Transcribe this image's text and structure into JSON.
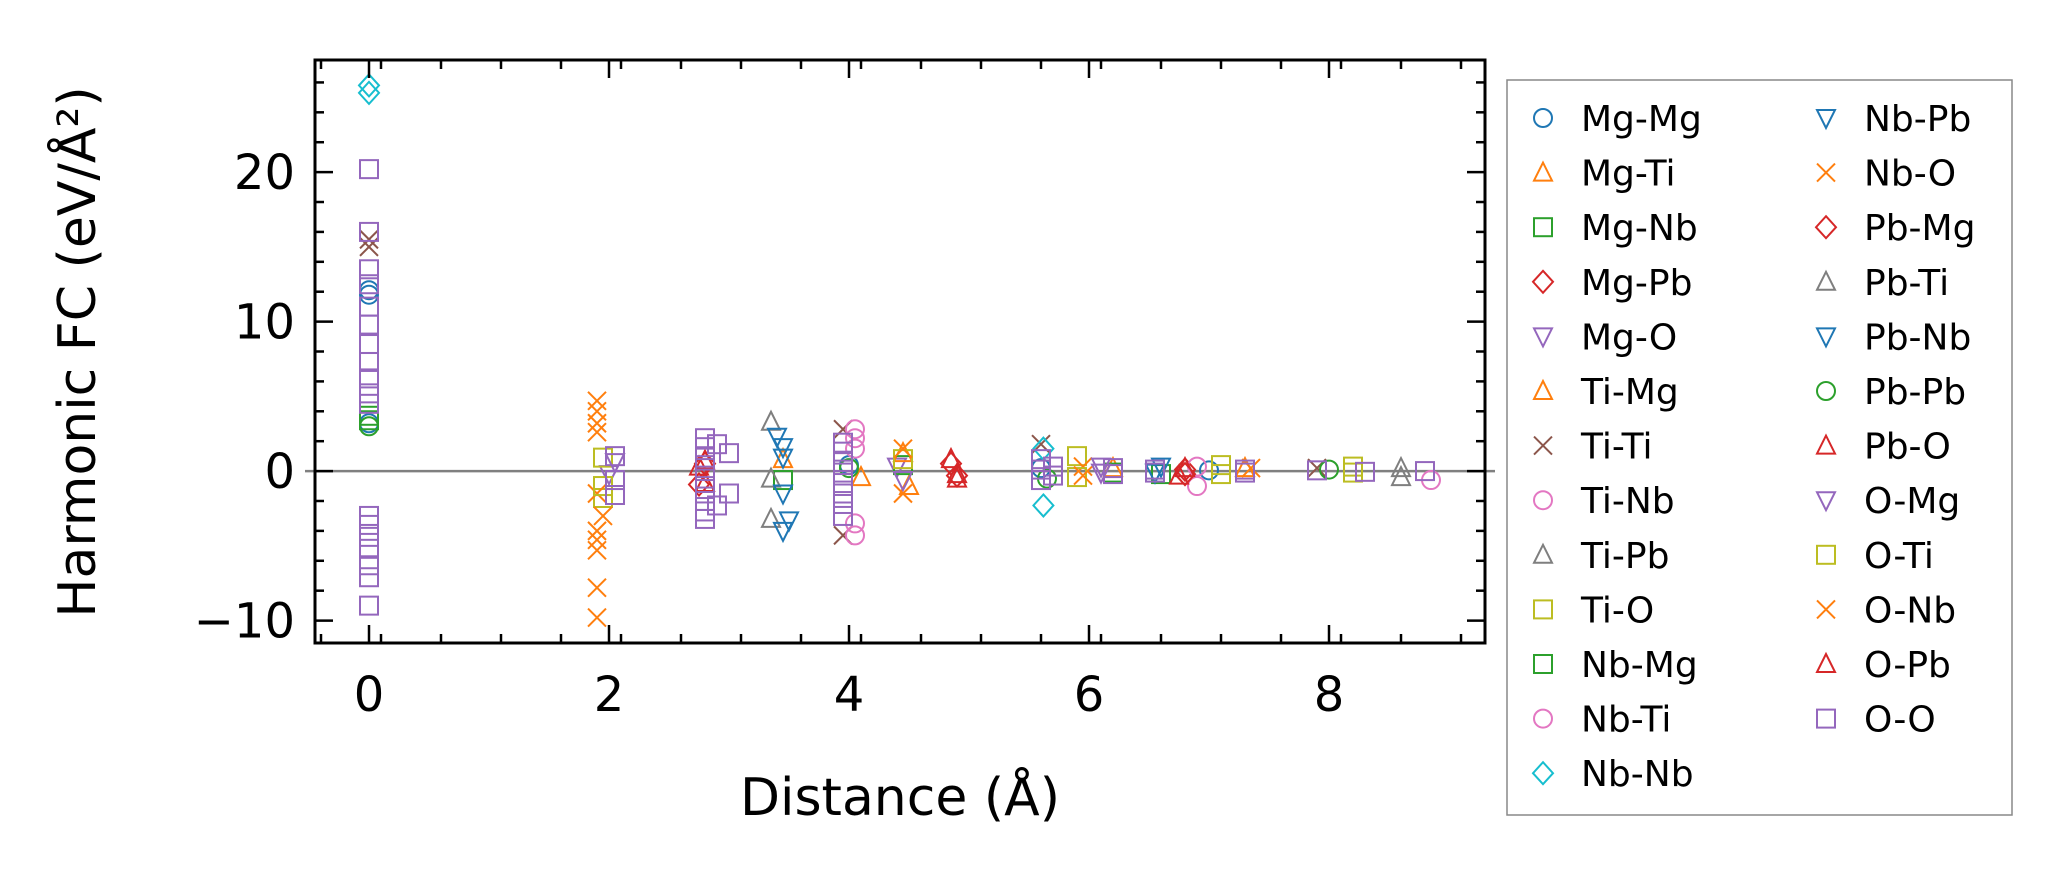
{
  "chart_data": {
    "type": "scatter",
    "xlabel": "Distance (Å)",
    "ylabel": "Harmonic FC (eV/Å²)",
    "xlim": [
      -0.45,
      9.3
    ],
    "ylim": [
      -11.5,
      27.5
    ],
    "xticks": [
      0,
      2,
      4,
      6,
      8
    ],
    "xtick_labels": [
      "0",
      "2",
      "4",
      "6",
      "8"
    ],
    "yticks": [
      -10,
      0,
      10,
      20
    ],
    "ytick_labels": [
      "−10",
      "0",
      "10",
      "20"
    ],
    "reference_line_y": 0,
    "legend_position": "outside right",
    "series": [
      {
        "name": "Mg-Mg",
        "color": "#1f77b4",
        "marker": "circle",
        "points": [
          [
            0,
            12.1
          ],
          [
            0,
            11.8
          ],
          [
            0,
            3.2
          ],
          [
            4.0,
            0.4
          ],
          [
            5.6,
            0.2
          ],
          [
            7.0,
            0.05
          ]
        ]
      },
      {
        "name": "Mg-Ti",
        "color": "#ff7f0e",
        "marker": "triangle-up",
        "points": [
          [
            3.45,
            0.8
          ],
          [
            4.1,
            -0.4
          ],
          [
            6.2,
            0.2
          ]
        ]
      },
      {
        "name": "Mg-Nb",
        "color": "#2ca02c",
        "marker": "square",
        "points": [
          [
            3.45,
            -0.6
          ],
          [
            6.2,
            -0.1
          ]
        ]
      },
      {
        "name": "Mg-Pb",
        "color": "#d62728",
        "marker": "diamond",
        "points": [
          [
            2.8,
            0.5
          ],
          [
            4.9,
            -0.3
          ],
          [
            6.8,
            0.1
          ]
        ]
      },
      {
        "name": "Mg-O",
        "color": "#9467bd",
        "marker": "triangle-down",
        "points": [
          [
            2.0,
            -0.2
          ],
          [
            4.4,
            0.3
          ],
          [
            6.1,
            -0.1
          ]
        ]
      },
      {
        "name": "Ti-Mg",
        "color": "#ff7f0e",
        "marker": "triangle-up",
        "points": [
          [
            4.45,
            1.2
          ],
          [
            4.5,
            -1.0
          ],
          [
            7.3,
            0.2
          ]
        ]
      },
      {
        "name": "Ti-Ti",
        "color": "#8c564b",
        "marker": "x",
        "points": [
          [
            0,
            15.5
          ],
          [
            0,
            15.0
          ],
          [
            3.95,
            2.8
          ],
          [
            3.95,
            -4.3
          ],
          [
            5.6,
            1.8
          ],
          [
            7.9,
            0.2
          ]
        ]
      },
      {
        "name": "Ti-Nb",
        "color": "#e377c2",
        "marker": "circle",
        "points": [
          [
            4.05,
            2.8
          ],
          [
            4.05,
            2.2
          ],
          [
            4.05,
            -3.5
          ],
          [
            4.05,
            -4.3
          ],
          [
            6.9,
            -1.0
          ],
          [
            8.85,
            -0.6
          ]
        ]
      },
      {
        "name": "Ti-Pb",
        "color": "#7f7f7f",
        "marker": "triangle-up",
        "points": [
          [
            3.35,
            3.3
          ],
          [
            3.35,
            -3.2
          ],
          [
            8.6,
            -0.4
          ]
        ]
      },
      {
        "name": "Ti-O",
        "color": "#bcbd22",
        "marker": "square",
        "points": [
          [
            1.95,
            0.9
          ],
          [
            1.95,
            -1.8
          ],
          [
            5.9,
            1.0
          ],
          [
            7.1,
            0.4
          ],
          [
            8.2,
            0.3
          ]
        ]
      },
      {
        "name": "Nb-Mg",
        "color": "#2ca02c",
        "marker": "square",
        "points": [
          [
            0,
            3.7
          ],
          [
            0,
            3.4
          ],
          [
            4.45,
            0.4
          ],
          [
            6.6,
            -0.2
          ]
        ]
      },
      {
        "name": "Nb-Ti",
        "color": "#e377c2",
        "marker": "circle",
        "points": [
          [
            4.05,
            1.5
          ],
          [
            6.9,
            0.3
          ]
        ]
      },
      {
        "name": "Nb-Nb",
        "color": "#17becf",
        "marker": "diamond",
        "points": [
          [
            0,
            25.8
          ],
          [
            0,
            25.3
          ],
          [
            5.62,
            1.5
          ],
          [
            5.62,
            -2.3
          ]
        ]
      },
      {
        "name": "Nb-Pb",
        "color": "#1f77b4",
        "marker": "triangle-down",
        "points": [
          [
            3.4,
            2.3
          ],
          [
            3.45,
            1.6
          ],
          [
            3.5,
            -3.3
          ],
          [
            3.45,
            -4.0
          ],
          [
            6.6,
            0.3
          ]
        ]
      },
      {
        "name": "Nb-O",
        "color": "#ff7f0e",
        "marker": "x",
        "points": [
          [
            1.9,
            4.7
          ],
          [
            1.9,
            4.0
          ],
          [
            1.9,
            3.2
          ],
          [
            1.9,
            2.6
          ],
          [
            1.9,
            -1.5
          ],
          [
            1.9,
            -4.0
          ],
          [
            1.9,
            -4.6
          ],
          [
            1.9,
            -5.3
          ],
          [
            1.9,
            -7.8
          ],
          [
            1.9,
            -9.8
          ],
          [
            5.95,
            0.3
          ]
        ]
      },
      {
        "name": "Pb-Mg",
        "color": "#d62728",
        "marker": "diamond",
        "points": [
          [
            2.75,
            -0.9
          ],
          [
            4.85,
            0.5
          ],
          [
            6.8,
            -0.2
          ]
        ]
      },
      {
        "name": "Pb-Ti",
        "color": "#7f7f7f",
        "marker": "triangle-up",
        "points": [
          [
            3.35,
            -0.5
          ],
          [
            8.6,
            0.2
          ]
        ]
      },
      {
        "name": "Pb-Nb",
        "color": "#1f77b4",
        "marker": "triangle-down",
        "points": [
          [
            3.45,
            0.9
          ],
          [
            3.45,
            -1.5
          ],
          [
            6.55,
            -0.1
          ]
        ]
      },
      {
        "name": "Pb-Pb",
        "color": "#2ca02c",
        "marker": "circle",
        "points": [
          [
            0,
            3.0
          ],
          [
            4.0,
            0.2
          ],
          [
            5.65,
            -0.5
          ],
          [
            8.0,
            0.1
          ]
        ]
      },
      {
        "name": "Pb-O",
        "color": "#d62728",
        "marker": "triangle-up",
        "points": [
          [
            2.8,
            0.7
          ],
          [
            2.8,
            -0.8
          ],
          [
            4.85,
            0.8
          ],
          [
            4.9,
            -0.5
          ],
          [
            6.8,
            0.2
          ]
        ]
      },
      {
        "name": "O-Mg",
        "color": "#9467bd",
        "marker": "triangle-down",
        "points": [
          [
            2.05,
            0.6
          ],
          [
            4.45,
            -0.6
          ],
          [
            6.1,
            0.3
          ]
        ]
      },
      {
        "name": "O-Ti",
        "color": "#bcbd22",
        "marker": "square",
        "points": [
          [
            1.95,
            -1.0
          ],
          [
            4.45,
            0.8
          ],
          [
            5.9,
            -0.4
          ],
          [
            7.1,
            -0.2
          ],
          [
            8.2,
            -0.1
          ]
        ]
      },
      {
        "name": "O-Nb",
        "color": "#ff7f0e",
        "marker": "x",
        "points": [
          [
            1.95,
            -3.0
          ],
          [
            4.45,
            1.5
          ],
          [
            4.45,
            -1.5
          ],
          [
            5.95,
            -0.3
          ],
          [
            7.35,
            0.2
          ]
        ]
      },
      {
        "name": "O-Pb",
        "color": "#d62728",
        "marker": "triangle-up",
        "points": [
          [
            2.75,
            0.3
          ],
          [
            4.9,
            -0.2
          ],
          [
            6.75,
            -0.3
          ]
        ]
      },
      {
        "name": "O-O",
        "color": "#9467bd",
        "marker": "square",
        "points": [
          [
            0,
            20.2
          ],
          [
            0,
            16.0
          ],
          [
            0,
            13.5
          ],
          [
            0,
            12.5
          ],
          [
            0,
            11.0
          ],
          [
            0,
            9.8
          ],
          [
            0,
            8.5
          ],
          [
            0,
            7.3
          ],
          [
            0,
            6.2
          ],
          [
            0,
            5.2
          ],
          [
            0,
            4.5
          ],
          [
            0,
            -3.0
          ],
          [
            0,
            -3.6
          ],
          [
            0,
            -4.4
          ],
          [
            0,
            -5.2
          ],
          [
            0,
            -6.3
          ],
          [
            0,
            -7.1
          ],
          [
            0,
            -9.0
          ],
          [
            2.05,
            1.0
          ],
          [
            2.05,
            -0.6
          ],
          [
            2.05,
            -1.6
          ],
          [
            2.8,
            2.2
          ],
          [
            2.8,
            1.6
          ],
          [
            2.8,
            0.9
          ],
          [
            2.8,
            0.2
          ],
          [
            2.8,
            -0.5
          ],
          [
            2.8,
            -1.2
          ],
          [
            2.8,
            -2.0
          ],
          [
            2.8,
            -2.7
          ],
          [
            2.8,
            -3.2
          ],
          [
            2.9,
            1.8
          ],
          [
            2.9,
            -2.3
          ],
          [
            3.0,
            1.2
          ],
          [
            3.0,
            -1.5
          ],
          [
            3.95,
            1.9
          ],
          [
            3.95,
            1.3
          ],
          [
            3.95,
            0.6
          ],
          [
            3.95,
            -0.1
          ],
          [
            3.95,
            -0.8
          ],
          [
            3.95,
            -1.5
          ],
          [
            3.95,
            -2.2
          ],
          [
            3.95,
            -3.0
          ],
          [
            5.6,
            0.8
          ],
          [
            5.6,
            0.1
          ],
          [
            5.6,
            -0.6
          ],
          [
            5.7,
            0.3
          ],
          [
            5.7,
            -0.3
          ],
          [
            6.2,
            0.2
          ],
          [
            6.2,
            -0.2
          ],
          [
            6.55,
            0.1
          ],
          [
            6.55,
            -0.1
          ],
          [
            7.3,
            0.1
          ],
          [
            7.3,
            -0.1
          ],
          [
            7.9,
            0.05
          ],
          [
            8.3,
            -0.05
          ],
          [
            8.8,
            0.0
          ]
        ]
      }
    ]
  }
}
